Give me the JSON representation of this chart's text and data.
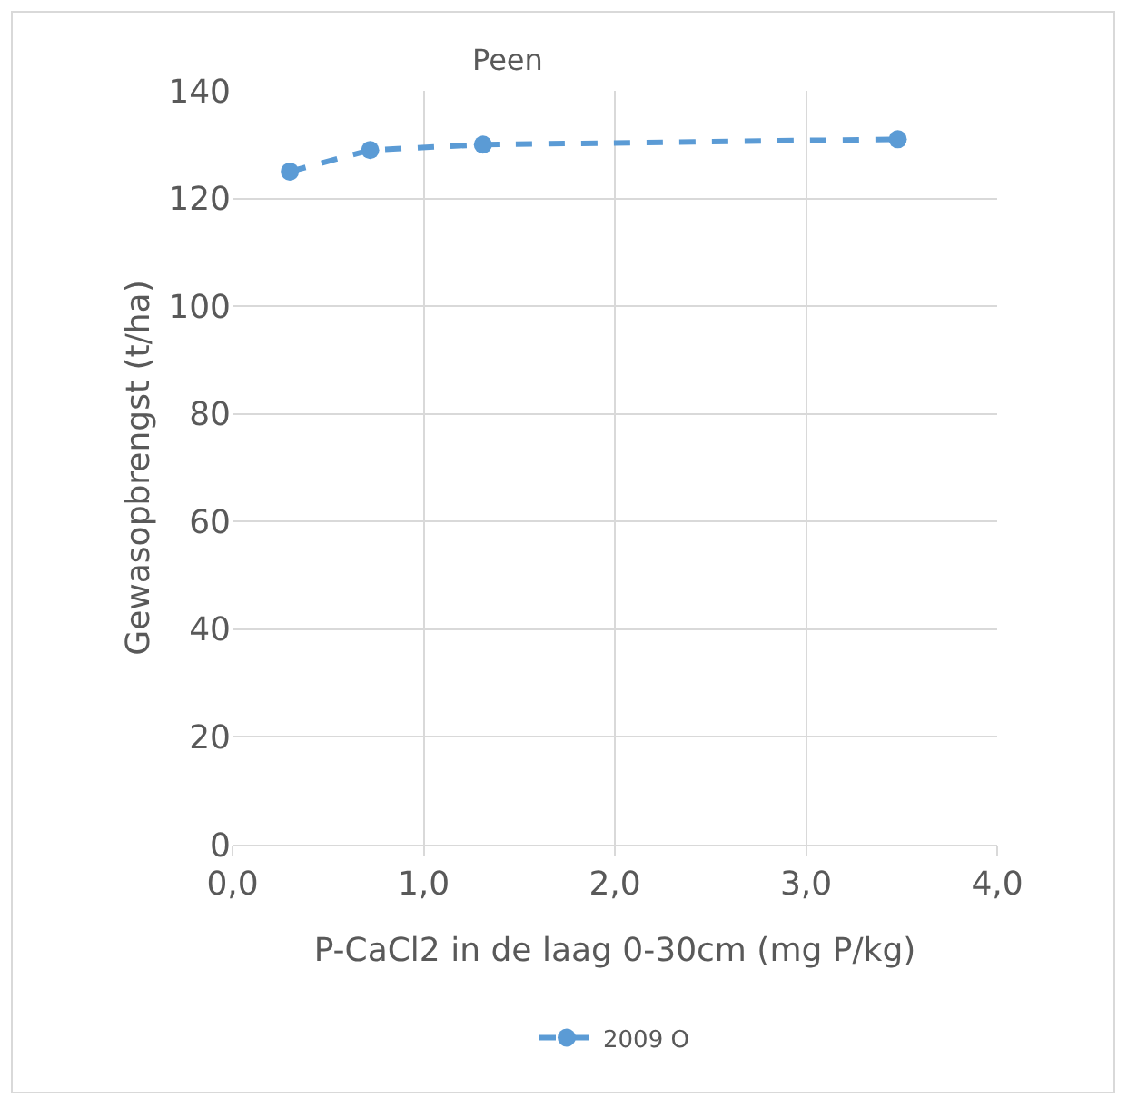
{
  "chart_data": {
    "type": "line",
    "title": "Peen",
    "xlabel": "P-CaCl2 in de laag 0-30cm (mg P/kg)",
    "ylabel": "Gewasopbrengst (t/ha)",
    "x": [
      0.3,
      0.72,
      1.31,
      3.48
    ],
    "series": [
      {
        "name": "2009 O",
        "color": "#5b9bd5",
        "values": [
          125,
          129,
          130,
          131
        ]
      }
    ],
    "xlim": [
      0,
      4
    ],
    "xticks": [
      {
        "value": 0,
        "label": "0,0"
      },
      {
        "value": 1,
        "label": "1,0"
      },
      {
        "value": 2,
        "label": "2,0"
      },
      {
        "value": 3,
        "label": "3,0"
      },
      {
        "value": 4,
        "label": "4,0"
      }
    ],
    "ylim": [
      0,
      140
    ],
    "yticks": [
      0,
      20,
      40,
      60,
      80,
      100,
      120,
      140
    ],
    "grid": true,
    "legend": "bottom",
    "marker": "circle",
    "line_style": "dashed"
  }
}
